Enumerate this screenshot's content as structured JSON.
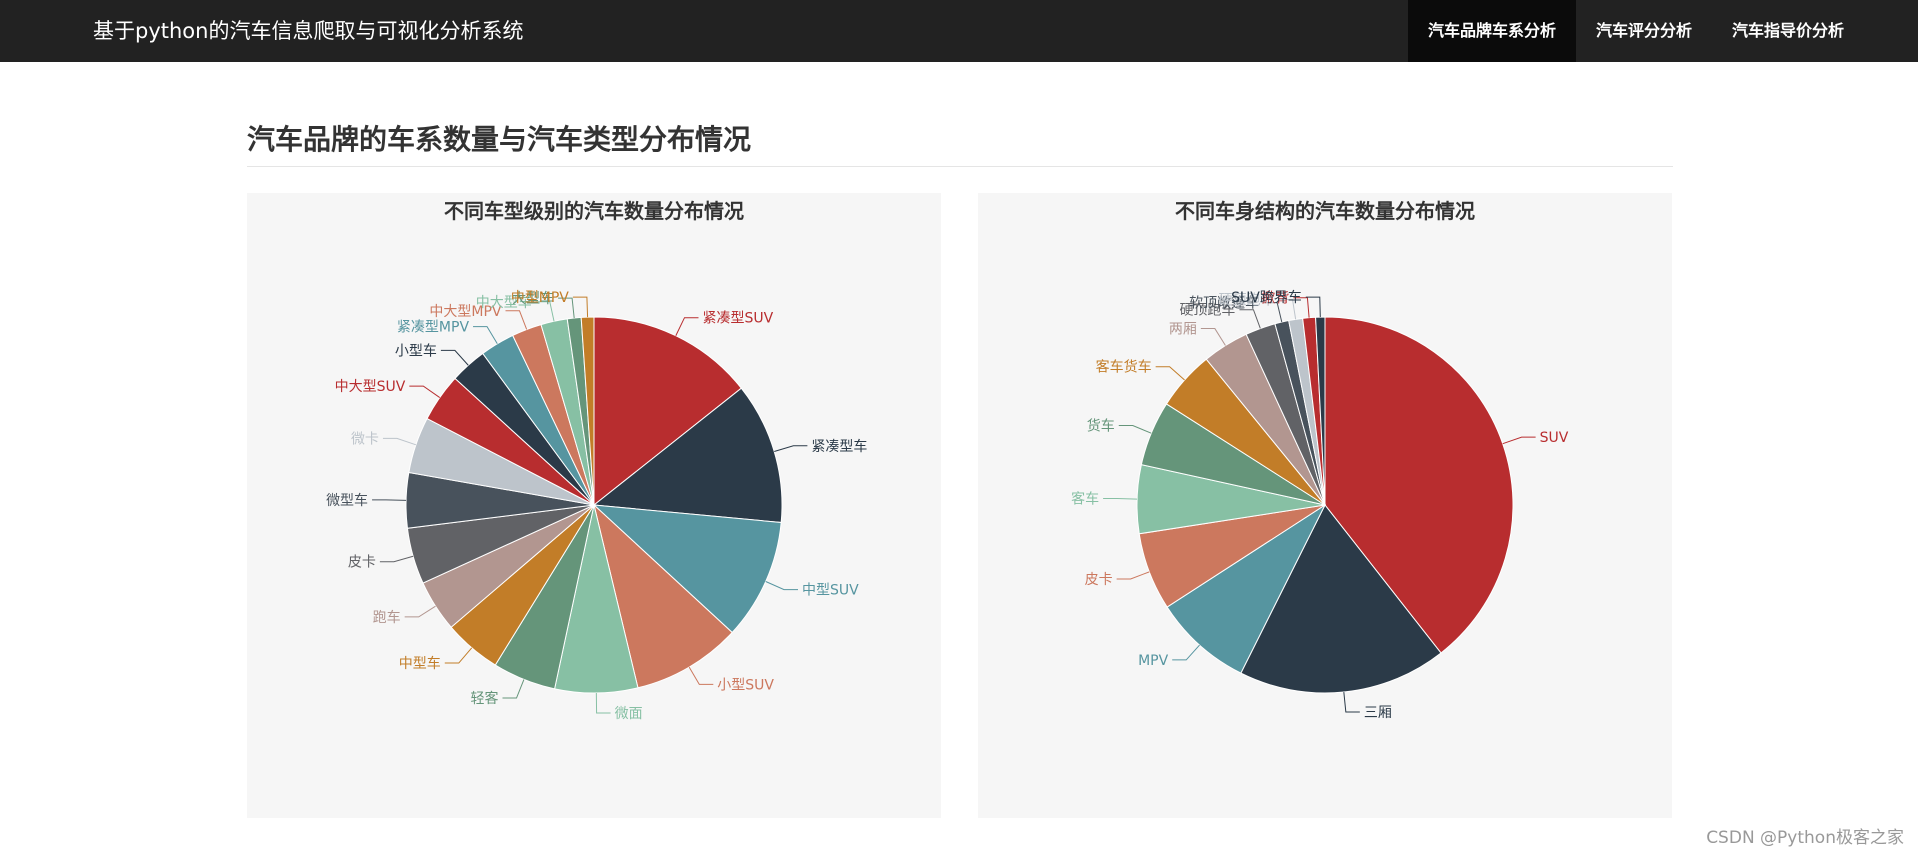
{
  "navbar": {
    "brand": "基于python的汽车信息爬取与可视化分析系统",
    "items": [
      {
        "label": "汽车品牌车系分析"
      },
      {
        "label": "汽车评分分析"
      },
      {
        "label": "汽车指导价分析"
      }
    ]
  },
  "page": {
    "title": "汽车品牌的车系数量与汽车类型分布情况"
  },
  "watermark": "CSDN @Python极客之家",
  "chart_data": [
    {
      "type": "pie",
      "title": "不同车型级别的汽车数量分布情况",
      "categories": [
        "紧凑型SUV",
        "紧凑型车",
        "中型SUV",
        "小型SUV",
        "微面",
        "轻客",
        "中型车",
        "跑车",
        "皮卡",
        "微型车",
        "微卡",
        "中大型SUV",
        "小型车",
        "紧凑型MPV",
        "中大型MPV",
        "中大型车",
        "大型车",
        "中型MPV"
      ],
      "values": [
        14.5,
        12.3,
        10.5,
        9.5,
        7.2,
        5.5,
        5.0,
        4.5,
        4.9,
        4.8,
        4.9,
        4.2,
        3.2,
        3.0,
        2.6,
        2.3,
        1.2,
        1.1
      ],
      "colors": [
        "#b82d2f",
        "#2b3a48",
        "#5695a0",
        "#cc785e",
        "#87c0a4",
        "#65957a",
        "#c27d28",
        "#b29690",
        "#616266",
        "#48525c",
        "#bdc4cb",
        "#b82d2f",
        "#2b3a48",
        "#5695a0",
        "#cc785e",
        "#87c0a4",
        "#65957a",
        "#c27d28"
      ]
    },
    {
      "type": "pie",
      "title": "不同车身结构的汽车数量分布情况",
      "categories": [
        "SUV",
        "三厢",
        "MPV",
        "皮卡",
        "客车",
        "货车",
        "客车货车",
        "两厢",
        "硬顶跑车",
        "软顶敞篷车",
        "硬顶跑车",
        "掀背",
        "SUV跨界车"
      ],
      "values": [
        39.5,
        18.0,
        8.5,
        6.7,
        5.9,
        5.6,
        5.1,
        4.0,
        2.6,
        1.2,
        1.2,
        1.1,
        0.8
      ],
      "colors": [
        "#b82d2f",
        "#2b3a48",
        "#5695a0",
        "#cc785e",
        "#87c0a4",
        "#65957a",
        "#c27d28",
        "#b29690",
        "#616266",
        "#48525c",
        "#bdc4cb",
        "#b82d2f",
        "#2b3a48"
      ]
    }
  ]
}
